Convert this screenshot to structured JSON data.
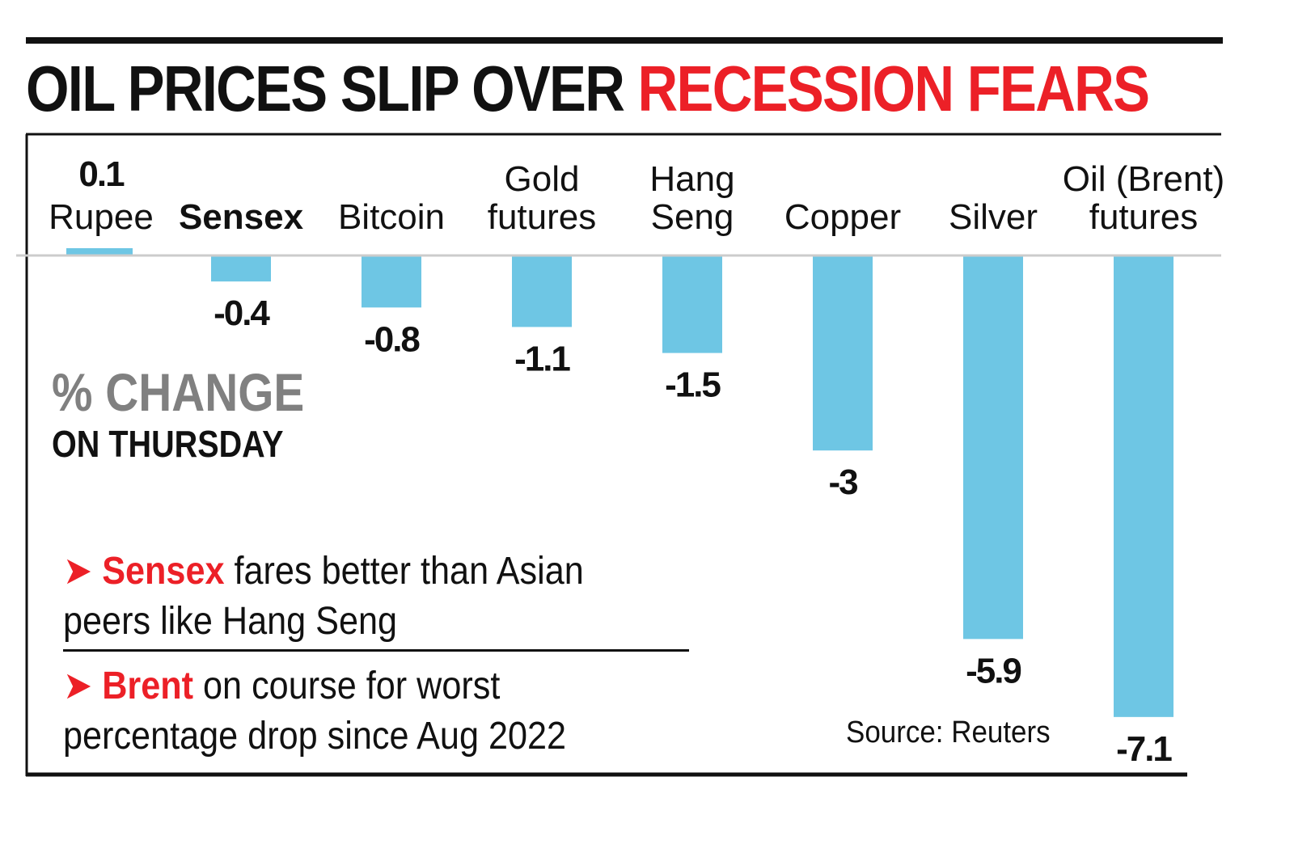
{
  "headline": {
    "part1": "OIL PRICES SLIP OVER ",
    "part2": "RECESSION FEARS"
  },
  "subtitle": {
    "line1": "% CHANGE",
    "line2": "ON THURSDAY"
  },
  "notes": [
    {
      "arrow": "➤",
      "highlight": "Sensex",
      "text": " fares better than Asian peers like Hang Seng"
    },
    {
      "arrow": "➤",
      "highlight": "Brent",
      "text": " on course for worst percentage drop since Aug 2022"
    }
  ],
  "source": "Source: Reuters",
  "colors": {
    "bar": "#6ec6e4",
    "accent": "#ec2027",
    "subtitle": "#808080",
    "text": "#111111",
    "baseline": "#cccccc"
  },
  "chart_data": {
    "type": "bar",
    "categories": [
      "Rupee",
      "Sensex",
      "Bitcoin",
      "Gold futures",
      "Hang Seng",
      "Copper",
      "Silver",
      "Oil (Brent) futures"
    ],
    "category_lines": [
      [
        "Rupee"
      ],
      [
        "Sensex"
      ],
      [
        "Bitcoin"
      ],
      [
        "Gold",
        "futures"
      ],
      [
        "Hang",
        "Seng"
      ],
      [
        "Copper"
      ],
      [
        "Silver"
      ],
      [
        "Oil (Brent)",
        "futures"
      ]
    ],
    "values": [
      0.1,
      -0.4,
      -0.8,
      -1.1,
      -1.5,
      -3,
      -5.9,
      -7.1
    ],
    "value_labels": [
      "0.1",
      "-0.4",
      "-0.8",
      "-1.1",
      "-1.5",
      "-3",
      "-5.9",
      "-7.1"
    ],
    "bold_categories": [
      "Sensex"
    ],
    "ylabel": "% change",
    "ylim": [
      -7.1,
      0.1
    ],
    "grid": false,
    "legend": "none"
  }
}
